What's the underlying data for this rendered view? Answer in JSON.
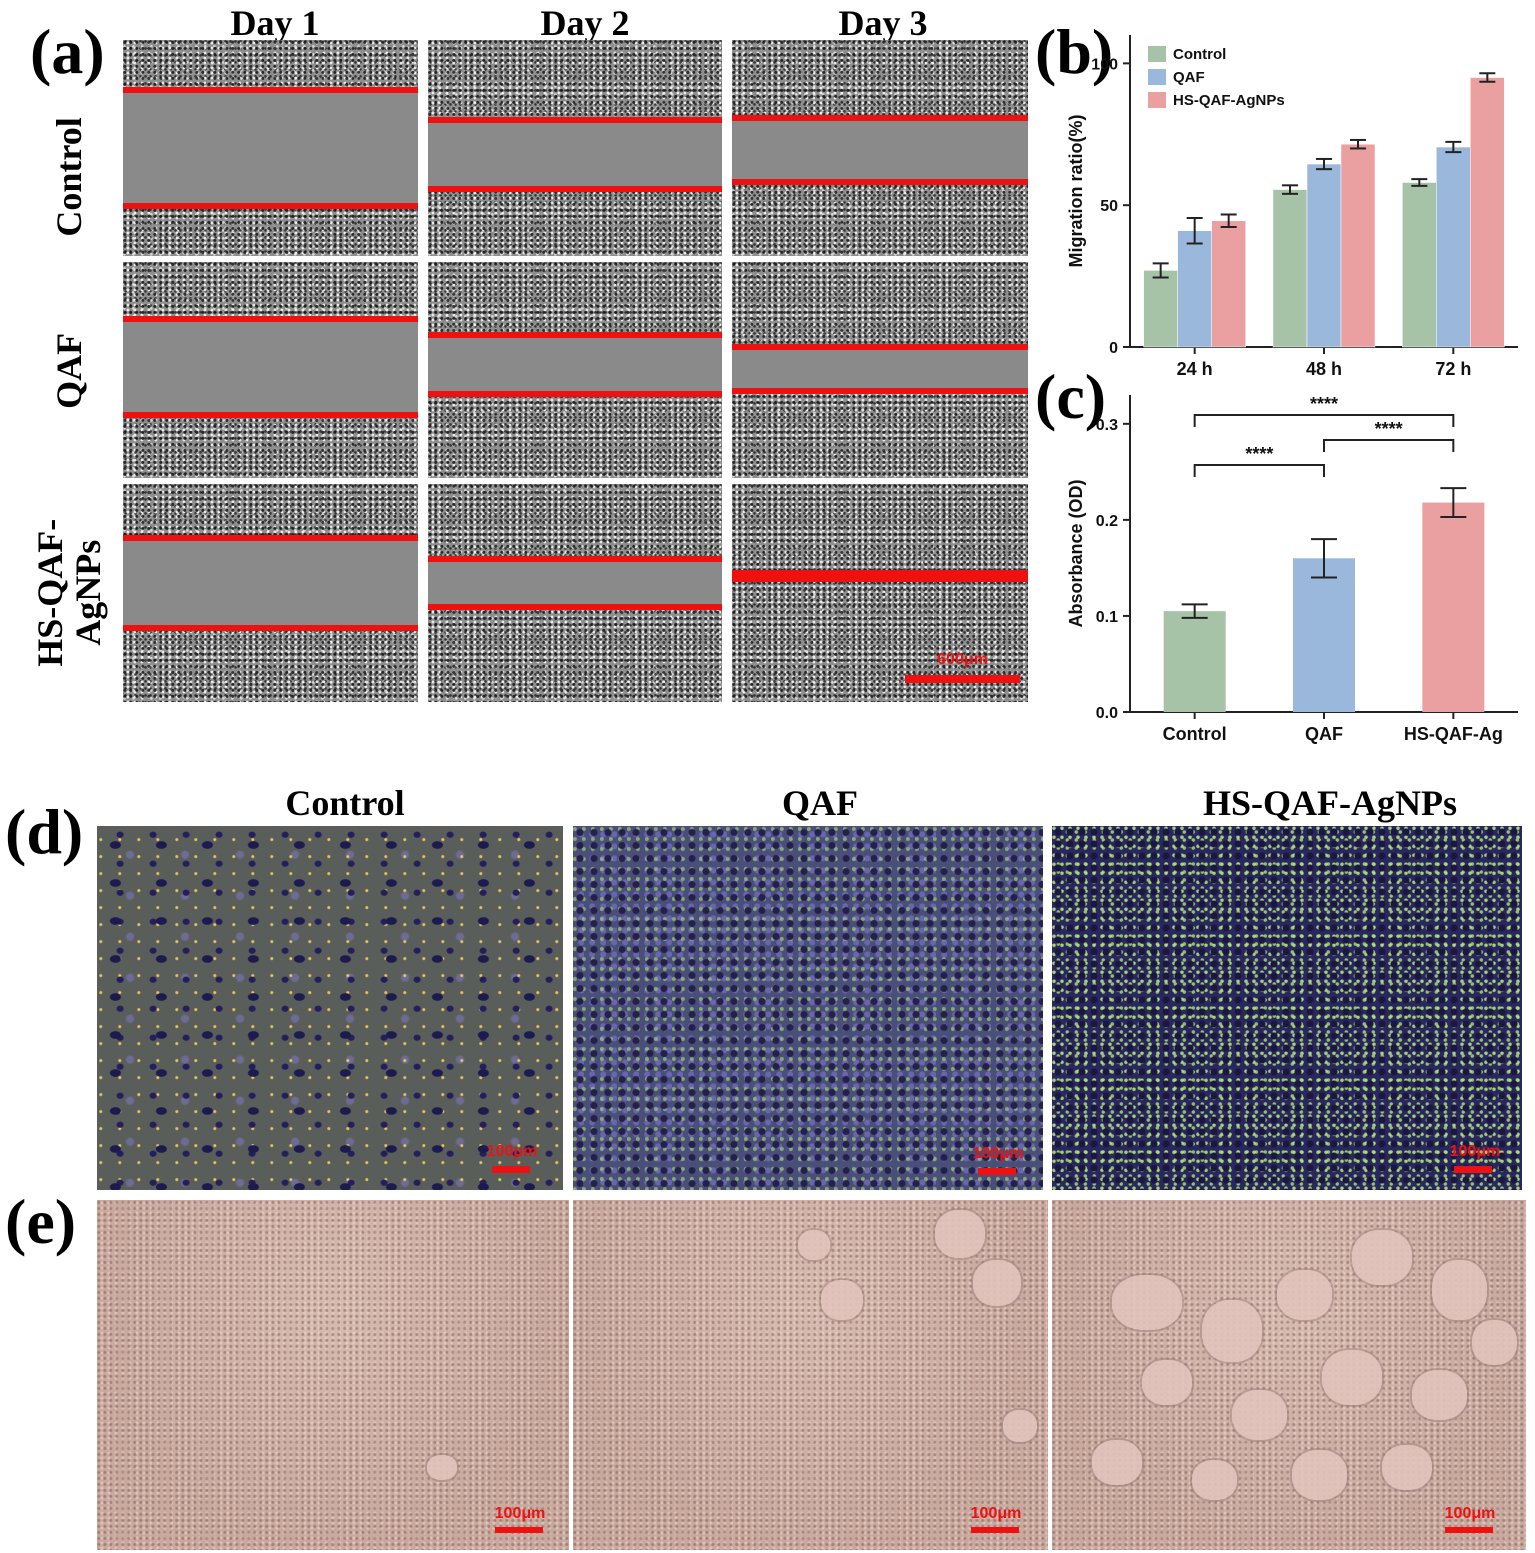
{
  "panel_labels": {
    "a": "(a)",
    "b": "(b)",
    "c": "(c)",
    "d": "(d)",
    "e": "(e)"
  },
  "panel_a": {
    "columns": [
      "Day 1",
      "Day 2",
      "Day 3"
    ],
    "rows": [
      "Control",
      "QAF",
      "HS-QAF-AgNPs"
    ],
    "row_label_hs_line1": "HS-QAF-",
    "row_label_hs_line2": "AgNPs",
    "scale_bar": "600μm"
  },
  "panel_d": {
    "columns": [
      "Control",
      "QAF",
      "HS-QAF-AgNPs"
    ],
    "scale_bar": "100μm"
  },
  "panel_e": {
    "scale_bar": "100μm"
  },
  "chart_data": [
    {
      "type": "bar",
      "panel": "b",
      "categories": [
        "24 h",
        "48 h",
        "72 h"
      ],
      "ylabel": "Migration ratio(%)",
      "xlabel": "",
      "ylim": [
        0,
        110
      ],
      "yticks": [
        "0",
        "50",
        "100"
      ],
      "legend": "top-left",
      "series": [
        {
          "name": "Control",
          "color": "#a6c3a8",
          "values": [
            27,
            55.5,
            58
          ],
          "errors": [
            2.5,
            1.5,
            1.2
          ]
        },
        {
          "name": "QAF",
          "color": "#9ab8dc",
          "values": [
            41,
            64.5,
            70.5
          ],
          "errors": [
            4.5,
            1.8,
            1.8
          ]
        },
        {
          "name": "HS-QAF-AgNPs",
          "color": "#eaa0a0",
          "values": [
            44.5,
            71.5,
            95
          ],
          "errors": [
            2.2,
            1.5,
            1.5
          ]
        }
      ]
    },
    {
      "type": "bar",
      "panel": "c",
      "categories": [
        "Control",
        "QAF",
        "HS-QAF-Ag"
      ],
      "ylabel": "Absorbance (OD)",
      "xlabel": "",
      "ylim": [
        0,
        0.33
      ],
      "yticks": [
        "0.0",
        "0.1",
        "0.2",
        "0.3"
      ],
      "values": [
        0.105,
        0.16,
        0.218
      ],
      "errors": [
        0.007,
        0.02,
        0.015
      ],
      "colors": [
        "#a6c3a8",
        "#9ab8dc",
        "#eaa0a0"
      ],
      "significance": [
        {
          "from": 0,
          "to": 1,
          "label": "****"
        },
        {
          "from": 1,
          "to": 2,
          "label": "****"
        },
        {
          "from": 0,
          "to": 2,
          "label": "****"
        }
      ]
    }
  ]
}
